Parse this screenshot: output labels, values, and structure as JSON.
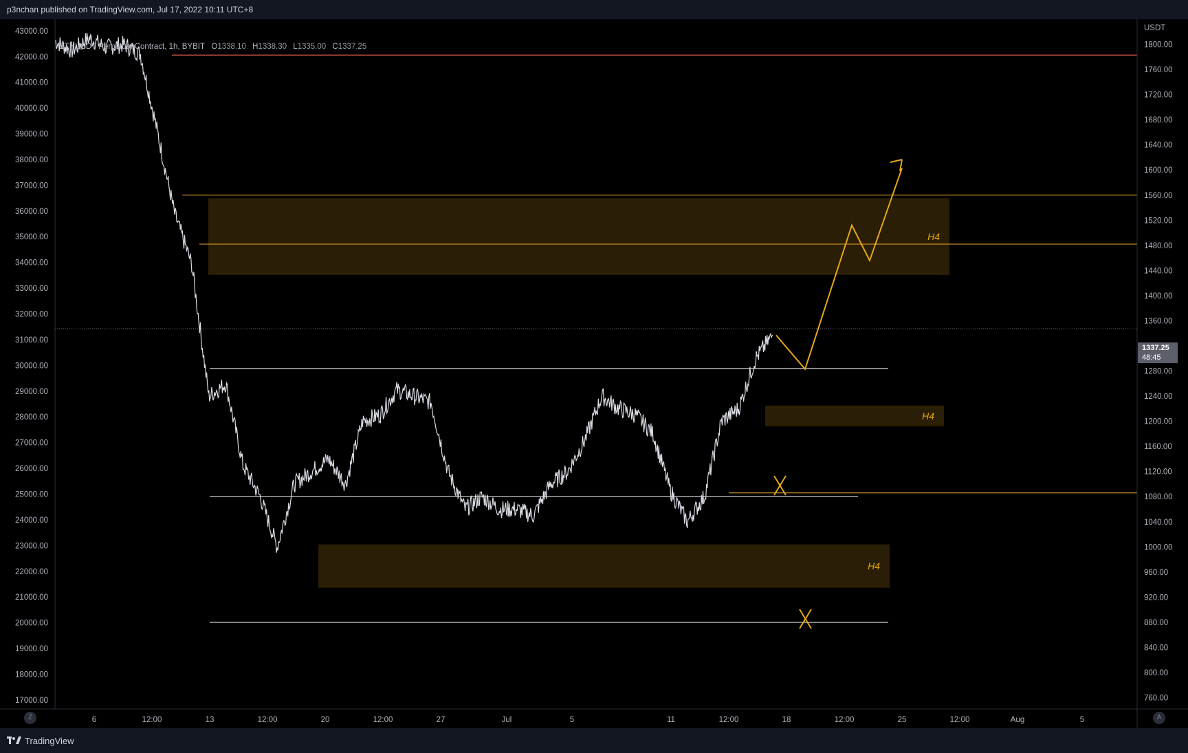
{
  "header": {
    "published": "p3nchan published on TradingView.com, Jul 17, 2022 10:11 UTC+8"
  },
  "legend": {
    "symbol": "ETHUSDT Perpetual Contract, 1h, BYBIT",
    "o_label": "O",
    "o": "1338.10",
    "h_label": "H",
    "h": "1338.30",
    "l_label": "L",
    "l": "1335.00",
    "c_label": "C",
    "c": "1337.25"
  },
  "last_price": {
    "value": "1337.25",
    "countdown": "48:45"
  },
  "footer": {
    "brand": "TradingView",
    "left_button": "Z",
    "right_button": "A"
  },
  "colors": {
    "line": "#ffffff",
    "level": "#f0a830",
    "zone": "#2a1e06",
    "projection": "#e6a817",
    "red_line": "#ff6a5a"
  },
  "chart_data": {
    "type": "line",
    "title": "ETHUSDT Perpetual Contract, 1h, BYBIT",
    "right_axis": {
      "unit": "USDT",
      "ylim": [
        742,
        1840
      ],
      "ticks": [
        "1800.00",
        "1760.00",
        "1720.00",
        "1680.00",
        "1640.00",
        "1600.00",
        "1560.00",
        "1520.00",
        "1480.00",
        "1440.00",
        "1400.00",
        "1360.00",
        "1320.00",
        "1280.00",
        "1240.00",
        "1200.00",
        "1160.00",
        "1120.00",
        "1080.00",
        "1040.00",
        "1000.00",
        "960.00",
        "920.00",
        "880.00",
        "840.00",
        "800.00",
        "760.00"
      ]
    },
    "left_axis": {
      "ylim": [
        16650,
        43450
      ],
      "ticks": [
        "43000.00",
        "42000.00",
        "41000.00",
        "40000.00",
        "39000.00",
        "38000.00",
        "37000.00",
        "36000.00",
        "35000.00",
        "34000.00",
        "33000.00",
        "32000.00",
        "31000.00",
        "30000.00",
        "29000.00",
        "28000.00",
        "27000.00",
        "26000.00",
        "25000.00",
        "24000.00",
        "23000.00",
        "22000.00",
        "21000.00",
        "20000.00",
        "19000.00",
        "18000.00",
        "17000.00"
      ]
    },
    "x_axis": {
      "labels": [
        "6",
        "12:00",
        "13",
        "12:00",
        "20",
        "12:00",
        "27",
        "Jul",
        "5",
        "11",
        "12:00",
        "18",
        "12:00",
        "25",
        "12:00",
        "Aug",
        "5"
      ]
    },
    "series": [
      {
        "name": "ETHUSDT Perpetual Contract",
        "x": [
          "Jun 5",
          "Jun 6",
          "Jun 7",
          "Jun 8",
          "Jun 9",
          "Jun 10",
          "Jun 11",
          "Jun 12",
          "Jun 13",
          "Jun 14",
          "Jun 15",
          "Jun 16",
          "Jun 17",
          "Jun 18",
          "Jun 19",
          "Jun 20",
          "Jun 21",
          "Jun 22",
          "Jun 23",
          "Jun 24",
          "Jun 25",
          "Jun 26",
          "Jun 27",
          "Jun 28",
          "Jun 29",
          "Jun 30",
          "Jul 1",
          "Jul 2",
          "Jul 3",
          "Jul 4",
          "Jul 5",
          "Jul 6",
          "Jul 7",
          "Jul 8",
          "Jul 9",
          "Jul 10",
          "Jul 11",
          "Jul 12",
          "Jul 13",
          "Jul 14",
          "Jul 15",
          "Jul 16",
          "Jul 17"
        ],
        "values": [
          1805,
          1790,
          1810,
          1795,
          1800,
          1785,
          1660,
          1530,
          1450,
          1240,
          1260,
          1130,
          1080,
          1000,
          1100,
          1120,
          1140,
          1100,
          1200,
          1210,
          1250,
          1240,
          1230,
          1120,
          1060,
          1080,
          1060,
          1060,
          1050,
          1100,
          1120,
          1170,
          1240,
          1220,
          1210,
          1180,
          1090,
          1040,
          1080,
          1200,
          1220,
          1300,
          1337.25
        ]
      }
    ],
    "levels": [
      {
        "price": 1783,
        "color": "red"
      },
      {
        "price": 1560,
        "color": "orange"
      },
      {
        "price": 1482,
        "color": "orange"
      },
      {
        "price": 1284,
        "color": "white"
      },
      {
        "price": 1086,
        "color": "orange"
      },
      {
        "price": 1080,
        "color": "white"
      },
      {
        "price": 880,
        "color": "white"
      }
    ],
    "zones": [
      {
        "from": 1433,
        "to": 1555,
        "label": "H4"
      },
      {
        "from": 1192,
        "to": 1225,
        "label": "H4"
      },
      {
        "from": 935,
        "to": 1004,
        "label": "H4"
      }
    ],
    "projection": [
      1337,
      1283,
      1512,
      1456,
      1603
    ]
  }
}
